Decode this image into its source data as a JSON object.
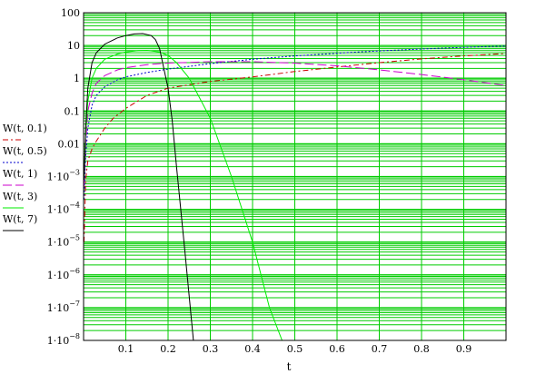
{
  "chart_data": {
    "type": "line",
    "title": "",
    "xlabel": "t",
    "ylabel": "",
    "xlim": [
      0,
      1
    ],
    "ylim": [
      1e-08,
      100
    ],
    "yscale": "log",
    "grid": true,
    "grid_color": "#00cc00",
    "x_ticks": [
      0.1,
      0.2,
      0.3,
      0.4,
      0.5,
      0.6,
      0.7,
      0.8,
      0.9
    ],
    "x_tick_labels": [
      "0.1",
      "0.2",
      "0.3",
      "0.4",
      "0.5",
      "0.6",
      "0.7",
      "0.8",
      "0.9"
    ],
    "y_ticks": [
      {
        "value": 100,
        "mant": "100",
        "exp": ""
      },
      {
        "value": 10,
        "mant": "10",
        "exp": ""
      },
      {
        "value": 1,
        "mant": "1",
        "exp": ""
      },
      {
        "value": 0.1,
        "mant": "0.1",
        "exp": ""
      },
      {
        "value": 0.01,
        "mant": "0.01",
        "exp": ""
      },
      {
        "value": 0.001,
        "mant": "1·10",
        "exp": "−3"
      },
      {
        "value": 0.0001,
        "mant": "1·10",
        "exp": "−4"
      },
      {
        "value": 1e-05,
        "mant": "1·10",
        "exp": "−5"
      },
      {
        "value": 1e-06,
        "mant": "1·10",
        "exp": "−6"
      },
      {
        "value": 1e-07,
        "mant": "1·10",
        "exp": "−7"
      },
      {
        "value": 1e-08,
        "mant": "1·10",
        "exp": "−8"
      }
    ],
    "legend_placement": "left",
    "series": [
      {
        "name": "W(t, 0.1)",
        "color": "#cc0000",
        "dash": "6,3,2,3",
        "points": [
          [
            0.001,
            1e-05
          ],
          [
            0.005,
            0.0008
          ],
          [
            0.01,
            0.003
          ],
          [
            0.02,
            0.007
          ],
          [
            0.03,
            0.012
          ],
          [
            0.05,
            0.03
          ],
          [
            0.07,
            0.06
          ],
          [
            0.1,
            0.12
          ],
          [
            0.15,
            0.3
          ],
          [
            0.2,
            0.5
          ],
          [
            0.3,
            0.8
          ],
          [
            0.4,
            1.1
          ],
          [
            0.5,
            1.6
          ],
          [
            0.6,
            2.2
          ],
          [
            0.7,
            3.0
          ],
          [
            0.8,
            3.9
          ],
          [
            0.9,
            4.8
          ],
          [
            1.0,
            5.7
          ]
        ]
      },
      {
        "name": "W(t, 0.5)",
        "color": "#0000cc",
        "dash": "2,2",
        "points": [
          [
            0.001,
            0.0002
          ],
          [
            0.005,
            0.004
          ],
          [
            0.01,
            0.03
          ],
          [
            0.02,
            0.15
          ],
          [
            0.03,
            0.3
          ],
          [
            0.05,
            0.55
          ],
          [
            0.08,
            0.9
          ],
          [
            0.1,
            1.1
          ],
          [
            0.15,
            1.5
          ],
          [
            0.2,
            1.9
          ],
          [
            0.3,
            2.8
          ],
          [
            0.4,
            3.8
          ],
          [
            0.5,
            4.8
          ],
          [
            0.6,
            5.8
          ],
          [
            0.7,
            6.8
          ],
          [
            0.8,
            7.8
          ],
          [
            0.9,
            8.8
          ],
          [
            1.0,
            9.6
          ]
        ]
      },
      {
        "name": "W(t, 1)",
        "color": "#cc00cc",
        "dash": "10,4",
        "points": [
          [
            0.001,
            0.0005
          ],
          [
            0.005,
            0.01
          ],
          [
            0.01,
            0.1
          ],
          [
            0.02,
            0.35
          ],
          [
            0.03,
            0.7
          ],
          [
            0.05,
            1.2
          ],
          [
            0.08,
            1.8
          ],
          [
            0.1,
            2.1
          ],
          [
            0.15,
            2.6
          ],
          [
            0.2,
            2.9
          ],
          [
            0.3,
            3.2
          ],
          [
            0.4,
            3.2
          ],
          [
            0.5,
            2.9
          ],
          [
            0.6,
            2.4
          ],
          [
            0.7,
            1.8
          ],
          [
            0.8,
            1.3
          ],
          [
            0.9,
            0.9
          ],
          [
            1.0,
            0.6
          ]
        ]
      },
      {
        "name": "W(t, 3)",
        "color": "#00ee00",
        "dash": "",
        "points": [
          [
            0.001,
            0.0008
          ],
          [
            0.005,
            0.02
          ],
          [
            0.01,
            0.2
          ],
          [
            0.02,
            1.0
          ],
          [
            0.03,
            2.0
          ],
          [
            0.05,
            3.8
          ],
          [
            0.08,
            5.5
          ],
          [
            0.1,
            6.3
          ],
          [
            0.13,
            7.0
          ],
          [
            0.15,
            7.1
          ],
          [
            0.18,
            6.3
          ],
          [
            0.2,
            5.0
          ],
          [
            0.22,
            3.0
          ],
          [
            0.25,
            1.0
          ],
          [
            0.3,
            0.06
          ],
          [
            0.35,
            0.001
          ],
          [
            0.4,
            1e-05
          ],
          [
            0.44,
            1e-07
          ],
          [
            0.47,
            1e-08
          ]
        ]
      },
      {
        "name": "W(t, 7)",
        "color": "#000000",
        "dash": "",
        "points": [
          [
            0.001,
            0.0008
          ],
          [
            0.005,
            0.03
          ],
          [
            0.01,
            0.5
          ],
          [
            0.02,
            3.0
          ],
          [
            0.03,
            6.0
          ],
          [
            0.05,
            11.0
          ],
          [
            0.08,
            17.0
          ],
          [
            0.1,
            20.0
          ],
          [
            0.12,
            22.5
          ],
          [
            0.14,
            23.0
          ],
          [
            0.16,
            20.0
          ],
          [
            0.17,
            15.0
          ],
          [
            0.18,
            8.0
          ],
          [
            0.19,
            2.0
          ],
          [
            0.2,
            0.5
          ],
          [
            0.21,
            0.05
          ],
          [
            0.22,
            0.002
          ],
          [
            0.24,
            5e-06
          ],
          [
            0.26,
            1e-08
          ]
        ]
      }
    ]
  }
}
